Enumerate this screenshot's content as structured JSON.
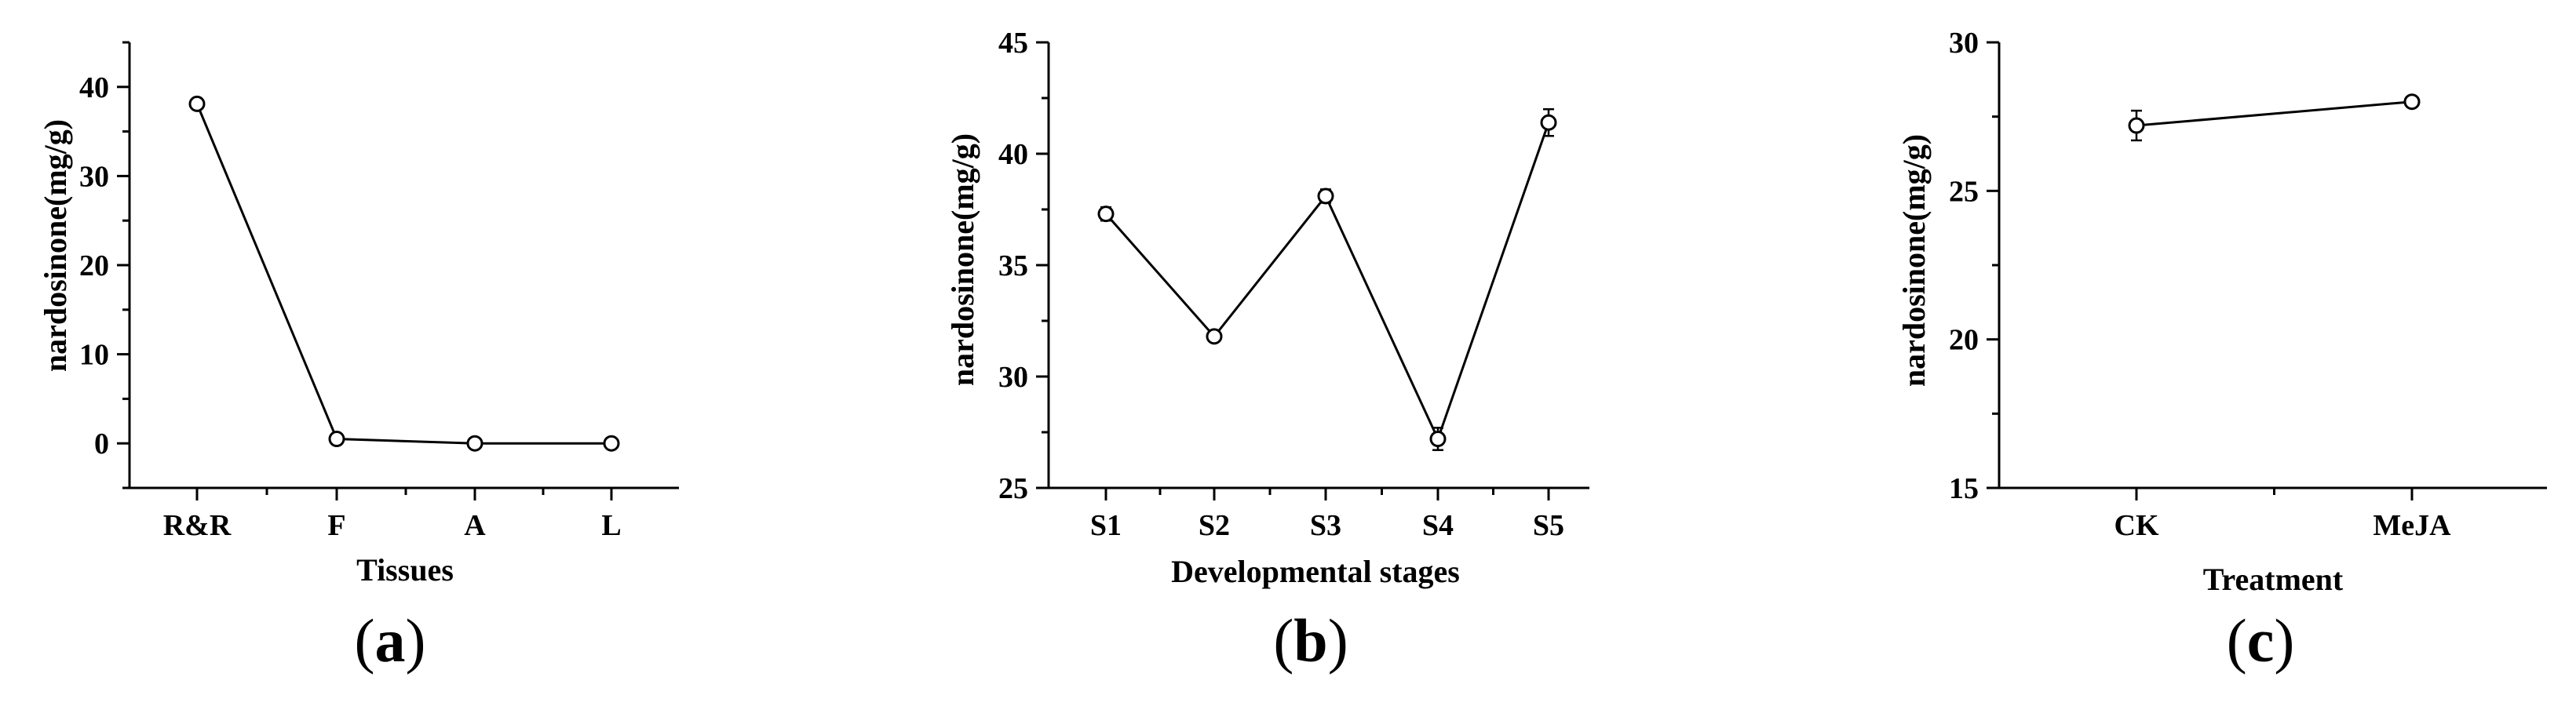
{
  "chart_data": [
    {
      "type": "line",
      "panel_label": "(a)",
      "panel_letter": "a",
      "title": "",
      "xlabel": "Tissues",
      "ylabel": "nardosinone(mg/g)",
      "categories": [
        "R&R",
        "F",
        "A",
        "L"
      ],
      "values": [
        38.1,
        0.5,
        0.0,
        0.0
      ],
      "errors": [
        0.4,
        0.2,
        0.1,
        0.1
      ],
      "ylim": [
        -5,
        45
      ],
      "yticks": [
        0,
        10,
        20,
        30,
        40
      ],
      "grid": false,
      "marker": "open-circle"
    },
    {
      "type": "line",
      "panel_label": "(b)",
      "panel_letter": "b",
      "title": "",
      "xlabel": "Developmental stages",
      "ylabel": "nardosinone(mg/g)",
      "categories": [
        "S1",
        "S2",
        "S3",
        "S4",
        "S5"
      ],
      "values": [
        37.3,
        31.8,
        38.1,
        27.2,
        41.4
      ],
      "errors": [
        0.3,
        0.2,
        0.3,
        0.5,
        0.6
      ],
      "ylim": [
        25,
        45
      ],
      "yticks": [
        25,
        30,
        35,
        40,
        45
      ],
      "grid": false,
      "marker": "open-circle"
    },
    {
      "type": "line",
      "panel_label": "(c)",
      "panel_letter": "c",
      "title": "",
      "xlabel": "Treatment",
      "ylabel": "nardosinone(mg/g)",
      "categories": [
        "CK",
        "MeJA"
      ],
      "values": [
        27.2,
        28.0
      ],
      "errors": [
        0.5,
        0.1
      ],
      "ylim": [
        15,
        30
      ],
      "yticks": [
        15,
        20,
        25,
        30
      ],
      "grid": false,
      "marker": "open-circle"
    }
  ]
}
